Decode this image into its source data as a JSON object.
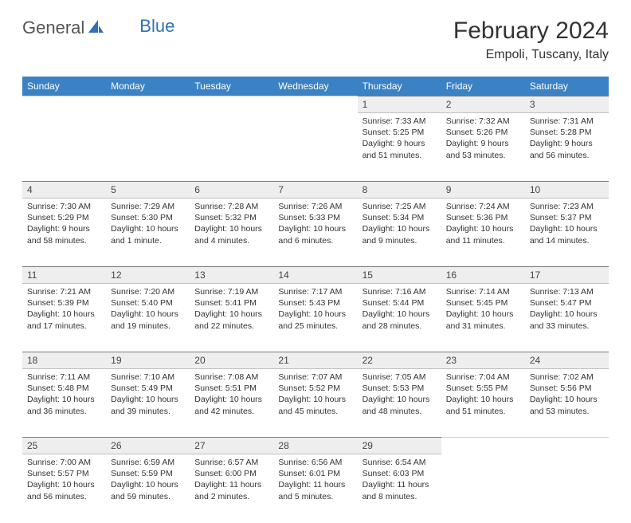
{
  "brand": {
    "part1": "General",
    "part2": "Blue"
  },
  "title": "February 2024",
  "location": "Empoli, Tuscany, Italy",
  "headers": [
    "Sunday",
    "Monday",
    "Tuesday",
    "Wednesday",
    "Thursday",
    "Friday",
    "Saturday"
  ],
  "header_bg": "#3b82c4",
  "header_fg": "#ffffff",
  "daynum_bg": "#eeeeee",
  "rule_color": "#7a7a7a",
  "weeks": [
    [
      null,
      null,
      null,
      null,
      {
        "n": "1",
        "sr": "7:33 AM",
        "ss": "5:25 PM",
        "dl": "9 hours and 51 minutes."
      },
      {
        "n": "2",
        "sr": "7:32 AM",
        "ss": "5:26 PM",
        "dl": "9 hours and 53 minutes."
      },
      {
        "n": "3",
        "sr": "7:31 AM",
        "ss": "5:28 PM",
        "dl": "9 hours and 56 minutes."
      }
    ],
    [
      {
        "n": "4",
        "sr": "7:30 AM",
        "ss": "5:29 PM",
        "dl": "9 hours and 58 minutes."
      },
      {
        "n": "5",
        "sr": "7:29 AM",
        "ss": "5:30 PM",
        "dl": "10 hours and 1 minute."
      },
      {
        "n": "6",
        "sr": "7:28 AM",
        "ss": "5:32 PM",
        "dl": "10 hours and 4 minutes."
      },
      {
        "n": "7",
        "sr": "7:26 AM",
        "ss": "5:33 PM",
        "dl": "10 hours and 6 minutes."
      },
      {
        "n": "8",
        "sr": "7:25 AM",
        "ss": "5:34 PM",
        "dl": "10 hours and 9 minutes."
      },
      {
        "n": "9",
        "sr": "7:24 AM",
        "ss": "5:36 PM",
        "dl": "10 hours and 11 minutes."
      },
      {
        "n": "10",
        "sr": "7:23 AM",
        "ss": "5:37 PM",
        "dl": "10 hours and 14 minutes."
      }
    ],
    [
      {
        "n": "11",
        "sr": "7:21 AM",
        "ss": "5:39 PM",
        "dl": "10 hours and 17 minutes."
      },
      {
        "n": "12",
        "sr": "7:20 AM",
        "ss": "5:40 PM",
        "dl": "10 hours and 19 minutes."
      },
      {
        "n": "13",
        "sr": "7:19 AM",
        "ss": "5:41 PM",
        "dl": "10 hours and 22 minutes."
      },
      {
        "n": "14",
        "sr": "7:17 AM",
        "ss": "5:43 PM",
        "dl": "10 hours and 25 minutes."
      },
      {
        "n": "15",
        "sr": "7:16 AM",
        "ss": "5:44 PM",
        "dl": "10 hours and 28 minutes."
      },
      {
        "n": "16",
        "sr": "7:14 AM",
        "ss": "5:45 PM",
        "dl": "10 hours and 31 minutes."
      },
      {
        "n": "17",
        "sr": "7:13 AM",
        "ss": "5:47 PM",
        "dl": "10 hours and 33 minutes."
      }
    ],
    [
      {
        "n": "18",
        "sr": "7:11 AM",
        "ss": "5:48 PM",
        "dl": "10 hours and 36 minutes."
      },
      {
        "n": "19",
        "sr": "7:10 AM",
        "ss": "5:49 PM",
        "dl": "10 hours and 39 minutes."
      },
      {
        "n": "20",
        "sr": "7:08 AM",
        "ss": "5:51 PM",
        "dl": "10 hours and 42 minutes."
      },
      {
        "n": "21",
        "sr": "7:07 AM",
        "ss": "5:52 PM",
        "dl": "10 hours and 45 minutes."
      },
      {
        "n": "22",
        "sr": "7:05 AM",
        "ss": "5:53 PM",
        "dl": "10 hours and 48 minutes."
      },
      {
        "n": "23",
        "sr": "7:04 AM",
        "ss": "5:55 PM",
        "dl": "10 hours and 51 minutes."
      },
      {
        "n": "24",
        "sr": "7:02 AM",
        "ss": "5:56 PM",
        "dl": "10 hours and 53 minutes."
      }
    ],
    [
      {
        "n": "25",
        "sr": "7:00 AM",
        "ss": "5:57 PM",
        "dl": "10 hours and 56 minutes."
      },
      {
        "n": "26",
        "sr": "6:59 AM",
        "ss": "5:59 PM",
        "dl": "10 hours and 59 minutes."
      },
      {
        "n": "27",
        "sr": "6:57 AM",
        "ss": "6:00 PM",
        "dl": "11 hours and 2 minutes."
      },
      {
        "n": "28",
        "sr": "6:56 AM",
        "ss": "6:01 PM",
        "dl": "11 hours and 5 minutes."
      },
      {
        "n": "29",
        "sr": "6:54 AM",
        "ss": "6:03 PM",
        "dl": "11 hours and 8 minutes."
      },
      null,
      null
    ]
  ],
  "labels": {
    "sunrise": "Sunrise: ",
    "sunset": "Sunset: ",
    "daylight": "Daylight: "
  },
  "typography": {
    "title_fontsize": 30,
    "location_fontsize": 16,
    "header_fontsize": 12,
    "daynum_fontsize": 12,
    "cell_fontsize": 10.5
  }
}
